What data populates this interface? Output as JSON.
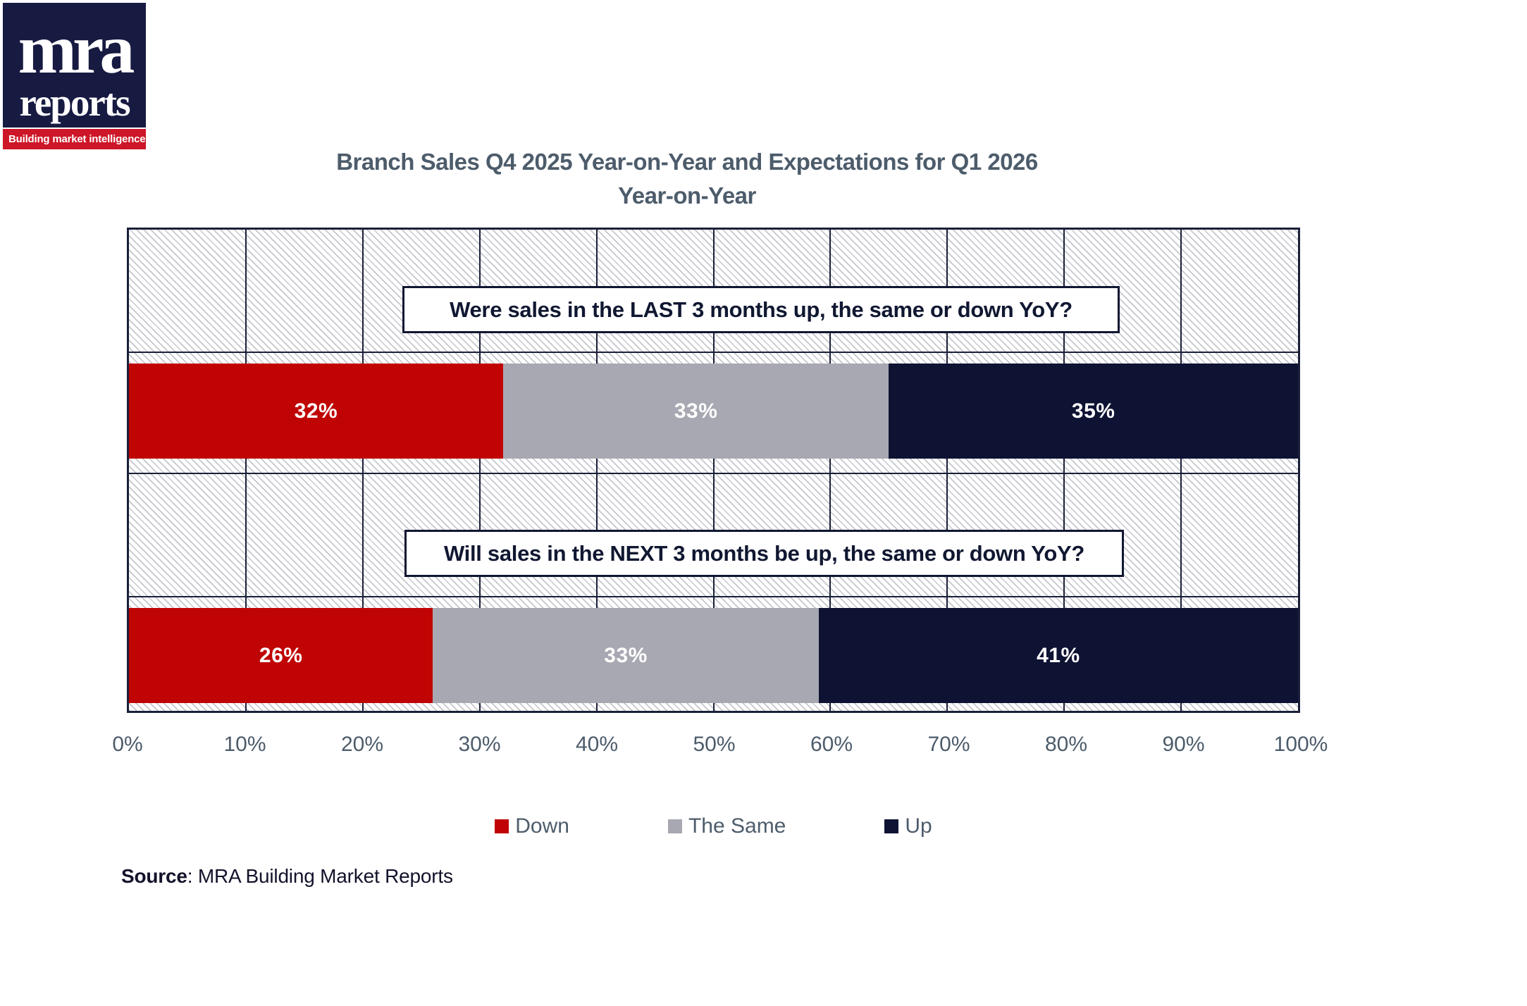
{
  "logo": {
    "brand_top": "mra",
    "brand_bottom": "reports",
    "tagline": "Building market intelligence"
  },
  "title": {
    "line1": "Branch Sales Q4 2025 Year-on-Year and Expectations for Q1 2026",
    "line2": "Year-on-Year"
  },
  "chart_data": {
    "type": "bar",
    "subtype": "horizontal-stacked",
    "title": "Branch Sales Q4 2025 Year-on-Year and Expectations for Q1 2026 Year-on-Year",
    "categories": [
      "Were sales in the LAST 3 months up, the same or down YoY?",
      "Will sales in the NEXT 3 months be up, the same or down YoY?"
    ],
    "series": [
      {
        "name": "Down",
        "color": "#C00404",
        "values": [
          32,
          26
        ]
      },
      {
        "name": "The Same",
        "color": "#A8A8B2",
        "values": [
          33,
          33
        ]
      },
      {
        "name": "Up",
        "color": "#0E1233",
        "values": [
          35,
          41
        ]
      }
    ],
    "value_suffix": "%",
    "x_ticks": [
      "0%",
      "10%",
      "20%",
      "30%",
      "40%",
      "50%",
      "60%",
      "70%",
      "80%",
      "90%",
      "100%"
    ],
    "xlim": [
      0,
      100
    ],
    "grid": true,
    "background_pattern": "diagonal-hatch",
    "legend_position": "bottom"
  },
  "source": {
    "label": "Source",
    "text": ": MRA Building Market Reports"
  },
  "colors": {
    "down": "#C00404",
    "the_same": "#A8A8B2",
    "up": "#0E1233",
    "grid": "#1A2038",
    "muted_text": "#4D5C6B",
    "logo_navy": "#171A41",
    "logo_red": "#CD1627"
  }
}
